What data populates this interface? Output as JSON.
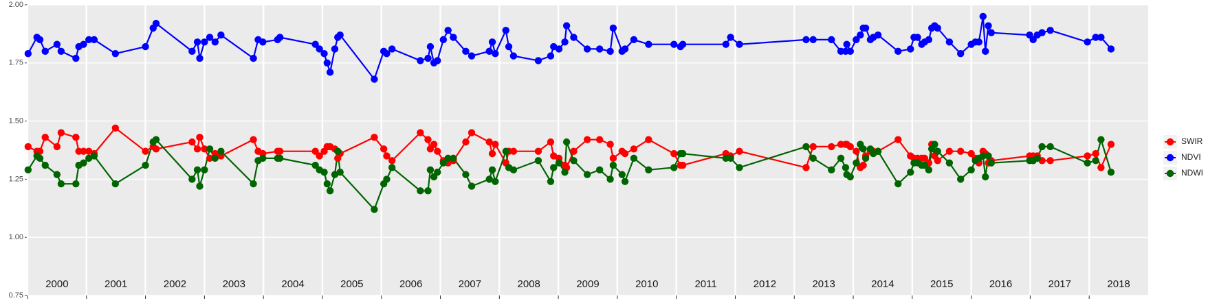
{
  "chart_data": {
    "type": "line",
    "x": [
      2000.01,
      2000.16,
      2000.21,
      2000.3,
      2000.5,
      2000.57,
      2000.82,
      2000.87,
      2000.95,
      2001.04,
      2001.13,
      2001.49,
      2002.0,
      2002.13,
      2002.18,
      2002.79,
      2002.88,
      2002.92,
      2003.0,
      2003.09,
      2003.18,
      2003.28,
      2003.83,
      2003.91,
      2003.99,
      2004.24,
      2004.28,
      2004.88,
      2004.95,
      2005.03,
      2005.08,
      2005.13,
      2005.21,
      2005.26,
      2005.3,
      2005.88,
      2006.04,
      2006.09,
      2006.18,
      2006.66,
      2006.79,
      2006.83,
      2006.89,
      2006.95,
      2007.05,
      2007.13,
      2007.22,
      2007.43,
      2007.53,
      2007.83,
      2007.88,
      2007.93,
      2008.11,
      2008.16,
      2008.24,
      2008.66,
      2008.87,
      2008.92,
      2009.01,
      2009.11,
      2009.14,
      2009.26,
      2009.49,
      2009.7,
      2009.88,
      2009.93,
      2010.08,
      2010.13,
      2010.28,
      2010.53,
      2010.96,
      2011.07,
      2011.11,
      2011.84,
      2011.92,
      2012.07,
      2013.2,
      2013.32,
      2013.63,
      2013.79,
      2013.87,
      2013.89,
      2013.95,
      2014.05,
      2014.12,
      2014.17,
      2014.21,
      2014.29,
      2014.34,
      2014.42,
      2014.76,
      2014.97,
      2015.03,
      2015.09,
      2015.16,
      2015.21,
      2015.28,
      2015.33,
      2015.38,
      2015.43,
      2015.63,
      2015.82,
      2016.0,
      2016.07,
      2016.13,
      2016.2,
      2016.24,
      2016.29,
      2016.34,
      2016.99,
      2017.05,
      2017.12,
      2017.2,
      2017.34,
      2017.97,
      2018.11,
      2018.2,
      2018.37
    ],
    "series": [
      {
        "name": "SWIR",
        "color": "#ff0000",
        "values": [
          1.39,
          1.37,
          1.37,
          1.43,
          1.39,
          1.45,
          1.43,
          1.37,
          1.37,
          1.37,
          1.36,
          1.47,
          1.37,
          1.39,
          1.38,
          1.41,
          1.38,
          1.43,
          1.38,
          1.34,
          1.36,
          1.35,
          1.42,
          1.37,
          1.36,
          1.37,
          1.37,
          1.37,
          1.35,
          1.37,
          1.39,
          1.39,
          1.38,
          1.34,
          1.36,
          1.43,
          1.38,
          1.35,
          1.33,
          1.45,
          1.42,
          1.38,
          1.4,
          1.37,
          1.33,
          1.32,
          1.33,
          1.41,
          1.45,
          1.41,
          1.36,
          1.4,
          1.32,
          1.37,
          1.37,
          1.37,
          1.41,
          1.35,
          1.34,
          1.31,
          1.3,
          1.37,
          1.42,
          1.42,
          1.4,
          1.34,
          1.37,
          1.36,
          1.38,
          1.42,
          1.36,
          1.31,
          1.31,
          1.36,
          1.35,
          1.37,
          1.3,
          1.39,
          1.39,
          1.4,
          1.4,
          1.4,
          1.39,
          1.37,
          1.3,
          1.31,
          1.35,
          1.37,
          1.37,
          1.37,
          1.42,
          1.35,
          1.34,
          1.34,
          1.34,
          1.34,
          1.32,
          1.4,
          1.35,
          1.33,
          1.37,
          1.37,
          1.36,
          1.34,
          1.32,
          1.37,
          1.36,
          1.32,
          1.33,
          1.35,
          1.35,
          1.35,
          1.33,
          1.33,
          1.35,
          1.36,
          1.3,
          1.4
        ]
      },
      {
        "name": "NDVI",
        "color": "#0000ff",
        "values": [
          1.79,
          1.86,
          1.85,
          1.8,
          1.83,
          1.8,
          1.77,
          1.82,
          1.83,
          1.85,
          1.85,
          1.79,
          1.82,
          1.9,
          1.92,
          1.8,
          1.84,
          1.77,
          1.84,
          1.86,
          1.84,
          1.87,
          1.77,
          1.85,
          1.84,
          1.85,
          1.86,
          1.83,
          1.81,
          1.79,
          1.75,
          1.71,
          1.81,
          1.86,
          1.87,
          1.68,
          1.8,
          1.79,
          1.81,
          1.76,
          1.77,
          1.82,
          1.75,
          1.76,
          1.85,
          1.89,
          1.86,
          1.8,
          1.78,
          1.8,
          1.84,
          1.79,
          1.89,
          1.82,
          1.78,
          1.76,
          1.78,
          1.82,
          1.81,
          1.84,
          1.91,
          1.86,
          1.81,
          1.81,
          1.8,
          1.9,
          1.8,
          1.81,
          1.85,
          1.83,
          1.83,
          1.82,
          1.83,
          1.83,
          1.86,
          1.83,
          1.85,
          1.85,
          1.85,
          1.8,
          1.8,
          1.83,
          1.8,
          1.85,
          1.87,
          1.9,
          1.9,
          1.85,
          1.86,
          1.87,
          1.8,
          1.81,
          1.86,
          1.86,
          1.83,
          1.84,
          1.85,
          1.9,
          1.91,
          1.9,
          1.84,
          1.79,
          1.83,
          1.84,
          1.84,
          1.95,
          1.8,
          1.91,
          1.88,
          1.87,
          1.85,
          1.87,
          1.88,
          1.89,
          1.84,
          1.86,
          1.86,
          1.81
        ]
      },
      {
        "name": "NDWI",
        "color": "#006400",
        "values": [
          1.29,
          1.35,
          1.34,
          1.31,
          1.27,
          1.23,
          1.23,
          1.31,
          1.32,
          1.34,
          1.35,
          1.23,
          1.31,
          1.41,
          1.42,
          1.25,
          1.29,
          1.22,
          1.29,
          1.38,
          1.34,
          1.37,
          1.23,
          1.33,
          1.34,
          1.34,
          1.34,
          1.31,
          1.29,
          1.28,
          1.23,
          1.2,
          1.27,
          1.37,
          1.28,
          1.12,
          1.23,
          1.25,
          1.3,
          1.2,
          1.2,
          1.29,
          1.26,
          1.28,
          1.32,
          1.34,
          1.34,
          1.27,
          1.22,
          1.25,
          1.29,
          1.24,
          1.37,
          1.3,
          1.29,
          1.33,
          1.24,
          1.3,
          1.32,
          1.28,
          1.41,
          1.33,
          1.27,
          1.29,
          1.25,
          1.31,
          1.27,
          1.24,
          1.34,
          1.29,
          1.3,
          1.36,
          1.36,
          1.34,
          1.34,
          1.3,
          1.39,
          1.34,
          1.29,
          1.34,
          1.3,
          1.27,
          1.26,
          1.32,
          1.4,
          1.38,
          1.34,
          1.38,
          1.36,
          1.37,
          1.23,
          1.28,
          1.32,
          1.32,
          1.31,
          1.31,
          1.29,
          1.38,
          1.4,
          1.37,
          1.32,
          1.25,
          1.29,
          1.33,
          1.34,
          1.35,
          1.26,
          1.35,
          1.32,
          1.33,
          1.33,
          1.34,
          1.39,
          1.39,
          1.32,
          1.33,
          1.42,
          1.28
        ]
      }
    ],
    "xlim": [
      2000,
      2019
    ],
    "xticks": [
      2000,
      2001,
      2002,
      2003,
      2004,
      2005,
      2006,
      2007,
      2008,
      2009,
      2010,
      2011,
      2012,
      2013,
      2014,
      2015,
      2016,
      2017,
      2018
    ],
    "ylim": [
      0.75,
      2.0
    ],
    "yticks": [
      {
        "value": 0.75,
        "label": "0.75"
      },
      {
        "value": 1.0,
        "label": "1.00"
      },
      {
        "value": 1.25,
        "label": "1.25"
      },
      {
        "value": 1.5,
        "label": "1.50"
      },
      {
        "value": 1.75,
        "label": "1.75"
      },
      {
        "value": 2.0,
        "label": "2.00"
      }
    ],
    "grid": true,
    "legend": "right"
  }
}
